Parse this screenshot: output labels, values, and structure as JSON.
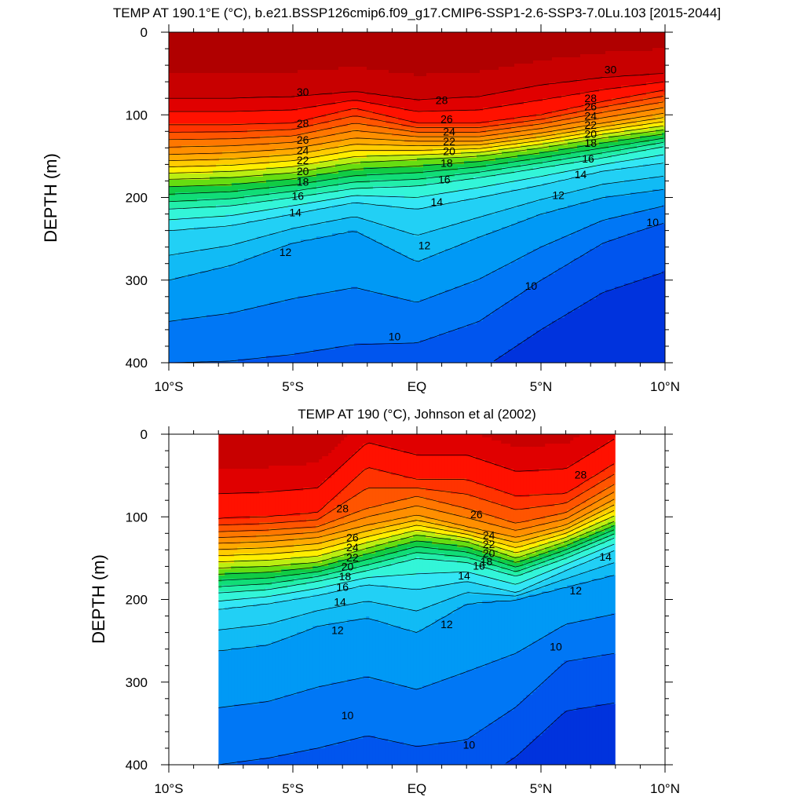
{
  "chart_data": [
    {
      "type": "contour",
      "title": "TEMP AT 190.1°E (°C), b.e21.BSSP126cmip6.f09_g17.CMIP6-SSP1-2.6-SSP3-7.0Lu.103 [2015-2044]",
      "ylabel": "DEPTH (m)",
      "xlabel": "",
      "xlim": [
        -10,
        10
      ],
      "ylim": [
        400,
        0
      ],
      "x_ticks": [
        "10°S",
        "5°S",
        "EQ",
        "5°N",
        "10°N"
      ],
      "y_ticks": [
        "0",
        "100",
        "200",
        "300",
        "400"
      ],
      "data_x_extent": [
        -10,
        10
      ],
      "contour_levels": [
        9,
        10,
        11,
        12,
        13,
        14,
        15,
        16,
        17,
        18,
        19,
        20,
        21,
        22,
        23,
        24,
        25,
        26,
        27,
        28,
        29,
        30
      ],
      "isotherm_depths_m": {
        "x": [
          -10,
          -7.5,
          -5,
          -2.5,
          0,
          2.5,
          5,
          7.5,
          10
        ],
        "t30": [
          80,
          80,
          78,
          72,
          82,
          78,
          64,
          55,
          50
        ],
        "t28": [
          112,
          112,
          110,
          92,
          110,
          110,
          100,
          84,
          70
        ],
        "t24": [
          148,
          146,
          141,
          128,
          132,
          132,
          122,
          110,
          98
        ],
        "t20": [
          178,
          176,
          170,
          158,
          154,
          150,
          140,
          128,
          118
        ],
        "t16": [
          214,
          210,
          200,
          189,
          186,
          176,
          164,
          152,
          138
        ],
        "t14": [
          240,
          234,
          220,
          206,
          214,
          200,
          185,
          168,
          158
        ],
        "t12": [
          300,
          282,
          255,
          240,
          278,
          248,
          220,
          200,
          190
        ],
        "t10": [
          400,
          398,
          390,
          378,
          376,
          350,
          300,
          255,
          230
        ]
      },
      "contour_labels": [
        {
          "text": "30",
          "x": -4.6,
          "y": 72
        },
        {
          "text": "28",
          "x": -4.6,
          "y": 110
        },
        {
          "text": "26",
          "x": -4.6,
          "y": 130
        },
        {
          "text": "24",
          "x": -4.6,
          "y": 143
        },
        {
          "text": "22",
          "x": -4.6,
          "y": 155
        },
        {
          "text": "20",
          "x": -4.6,
          "y": 168
        },
        {
          "text": "18",
          "x": -4.6,
          "y": 181
        },
        {
          "text": "16",
          "x": -4.8,
          "y": 198
        },
        {
          "text": "14",
          "x": -4.9,
          "y": 218
        },
        {
          "text": "12",
          "x": -5.3,
          "y": 266
        },
        {
          "text": "28",
          "x": 1.0,
          "y": 82
        },
        {
          "text": "26",
          "x": 1.2,
          "y": 105
        },
        {
          "text": "24",
          "x": 1.3,
          "y": 120
        },
        {
          "text": "22",
          "x": 1.3,
          "y": 132
        },
        {
          "text": "20",
          "x": 1.3,
          "y": 144
        },
        {
          "text": "18",
          "x": 1.2,
          "y": 158
        },
        {
          "text": "16",
          "x": 1.1,
          "y": 178
        },
        {
          "text": "14",
          "x": 0.8,
          "y": 205
        },
        {
          "text": "12",
          "x": 0.3,
          "y": 258
        },
        {
          "text": "10",
          "x": -0.9,
          "y": 368
        },
        {
          "text": "10",
          "x": 4.6,
          "y": 307
        },
        {
          "text": "12",
          "x": 5.7,
          "y": 197
        },
        {
          "text": "14",
          "x": 6.6,
          "y": 172
        },
        {
          "text": "16",
          "x": 6.9,
          "y": 153
        },
        {
          "text": "18",
          "x": 7.0,
          "y": 134
        },
        {
          "text": "20",
          "x": 7.0,
          "y": 123
        },
        {
          "text": "22",
          "x": 7.0,
          "y": 112
        },
        {
          "text": "24",
          "x": 7.0,
          "y": 101
        },
        {
          "text": "26",
          "x": 7.0,
          "y": 90
        },
        {
          "text": "28",
          "x": 7.0,
          "y": 80
        },
        {
          "text": "30",
          "x": 7.8,
          "y": 45
        },
        {
          "text": "10",
          "x": 9.5,
          "y": 230
        }
      ]
    },
    {
      "type": "contour",
      "title": "TEMP AT 190 (°C), Johnson et al (2002)",
      "ylabel": "DEPTH (m)",
      "xlabel": "",
      "xlim": [
        -10,
        10
      ],
      "ylim": [
        400,
        0
      ],
      "x_ticks": [
        "10°S",
        "5°S",
        "EQ",
        "5°N",
        "10°N"
      ],
      "y_ticks": [
        "0",
        "100",
        "200",
        "300",
        "400"
      ],
      "data_x_extent": [
        -8,
        8
      ],
      "contour_levels": [
        9,
        10,
        11,
        12,
        13,
        14,
        15,
        16,
        17,
        18,
        19,
        20,
        21,
        22,
        23,
        24,
        25,
        26,
        27,
        28,
        29
      ],
      "isotherm_depths_m": {
        "x": [
          -8,
          -6,
          -4,
          -2,
          0,
          2,
          4,
          6,
          8
        ],
        "t28": [
          102,
          100,
          95,
          40,
          55,
          55,
          75,
          72,
          35
        ],
        "t26": [
          118,
          116,
          112,
          90,
          75,
          90,
          108,
          95,
          60
        ],
        "t24": [
          132,
          130,
          125,
          110,
          98,
          112,
          125,
          110,
          78
        ],
        "t20": [
          162,
          160,
          155,
          138,
          122,
          130,
          150,
          130,
          105
        ],
        "t16": [
          192,
          188,
          178,
          165,
          150,
          155,
          172,
          150,
          125
        ],
        "t14": [
          212,
          205,
          195,
          182,
          188,
          178,
          192,
          165,
          140
        ],
        "t12": [
          262,
          255,
          232,
          222,
          240,
          205,
          200,
          185,
          170
        ],
        "t10": [
          400,
          392,
          380,
          365,
          378,
          370,
          330,
          275,
          265
        ]
      },
      "contour_labels": [
        {
          "text": "28",
          "x": -3.0,
          "y": 90
        },
        {
          "text": "26",
          "x": -2.6,
          "y": 125
        },
        {
          "text": "24",
          "x": -2.6,
          "y": 137
        },
        {
          "text": "22",
          "x": -2.6,
          "y": 149
        },
        {
          "text": "20",
          "x": -2.8,
          "y": 160
        },
        {
          "text": "18",
          "x": -2.9,
          "y": 172
        },
        {
          "text": "16",
          "x": -3.0,
          "y": 185
        },
        {
          "text": "14",
          "x": -3.1,
          "y": 203
        },
        {
          "text": "12",
          "x": -3.2,
          "y": 237
        },
        {
          "text": "10",
          "x": -2.8,
          "y": 340
        },
        {
          "text": "26",
          "x": 2.4,
          "y": 97
        },
        {
          "text": "24",
          "x": 2.9,
          "y": 122
        },
        {
          "text": "22",
          "x": 2.9,
          "y": 133
        },
        {
          "text": "20",
          "x": 2.9,
          "y": 144
        },
        {
          "text": "18",
          "x": 2.8,
          "y": 154
        },
        {
          "text": "16",
          "x": 2.5,
          "y": 159
        },
        {
          "text": "14",
          "x": 1.9,
          "y": 171
        },
        {
          "text": "12",
          "x": 1.2,
          "y": 230
        },
        {
          "text": "10",
          "x": 2.1,
          "y": 376
        },
        {
          "text": "12",
          "x": 6.4,
          "y": 189
        },
        {
          "text": "10",
          "x": 5.6,
          "y": 257
        },
        {
          "text": "14",
          "x": 7.6,
          "y": 148
        },
        {
          "text": "28",
          "x": 6.6,
          "y": 49
        }
      ]
    }
  ]
}
